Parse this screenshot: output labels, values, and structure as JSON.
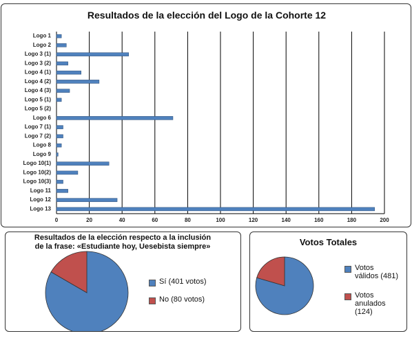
{
  "chart_data": [
    {
      "type": "bar",
      "orientation": "horizontal",
      "title": "Resultados de la elección del Logo de la Cohorte 12",
      "categories": [
        "Logo 1",
        "Logo 2",
        "Logo 3 (1)",
        "Logo 3 (2)",
        "Logo 4 (1)",
        "Logo 4 (2)",
        "Logo 4 (3)",
        "Logo 5 (1)",
        "Logo 5 (2)",
        "Logo 6",
        "Logo 7 (1)",
        "Logo 7 (2)",
        "Logo 8",
        "Logo 9",
        "Logo 10(1)",
        "Logo 10(2)",
        "Logo 10(3)",
        "Logo 11",
        "Logo 12",
        "Logo 13"
      ],
      "values": [
        3,
        6,
        44,
        7,
        15,
        26,
        8,
        3,
        0,
        71,
        4,
        4,
        3,
        1,
        32,
        13,
        4,
        7,
        37,
        194
      ],
      "color": "#4f81bd",
      "xlim": [
        0,
        200
      ],
      "xticks": [
        0,
        20,
        40,
        60,
        80,
        100,
        120,
        140,
        160,
        180,
        200
      ],
      "grid": true
    },
    {
      "type": "pie",
      "title": "Resultados de la elección respecto a la inclusión de la frase: «Estudiante hoy, Uesebista siempre»",
      "categories": [
        "Sí (401 votos)",
        "No (80 votos)"
      ],
      "values": [
        401,
        80
      ],
      "colors": [
        "#4f81bd",
        "#c0504d"
      ]
    },
    {
      "type": "pie",
      "title": "Votos Totales",
      "categories": [
        "Votos válidos (481)",
        "Votos anulados (124)"
      ],
      "values": [
        481,
        124
      ],
      "colors": [
        "#4f81bd",
        "#c0504d"
      ]
    }
  ]
}
